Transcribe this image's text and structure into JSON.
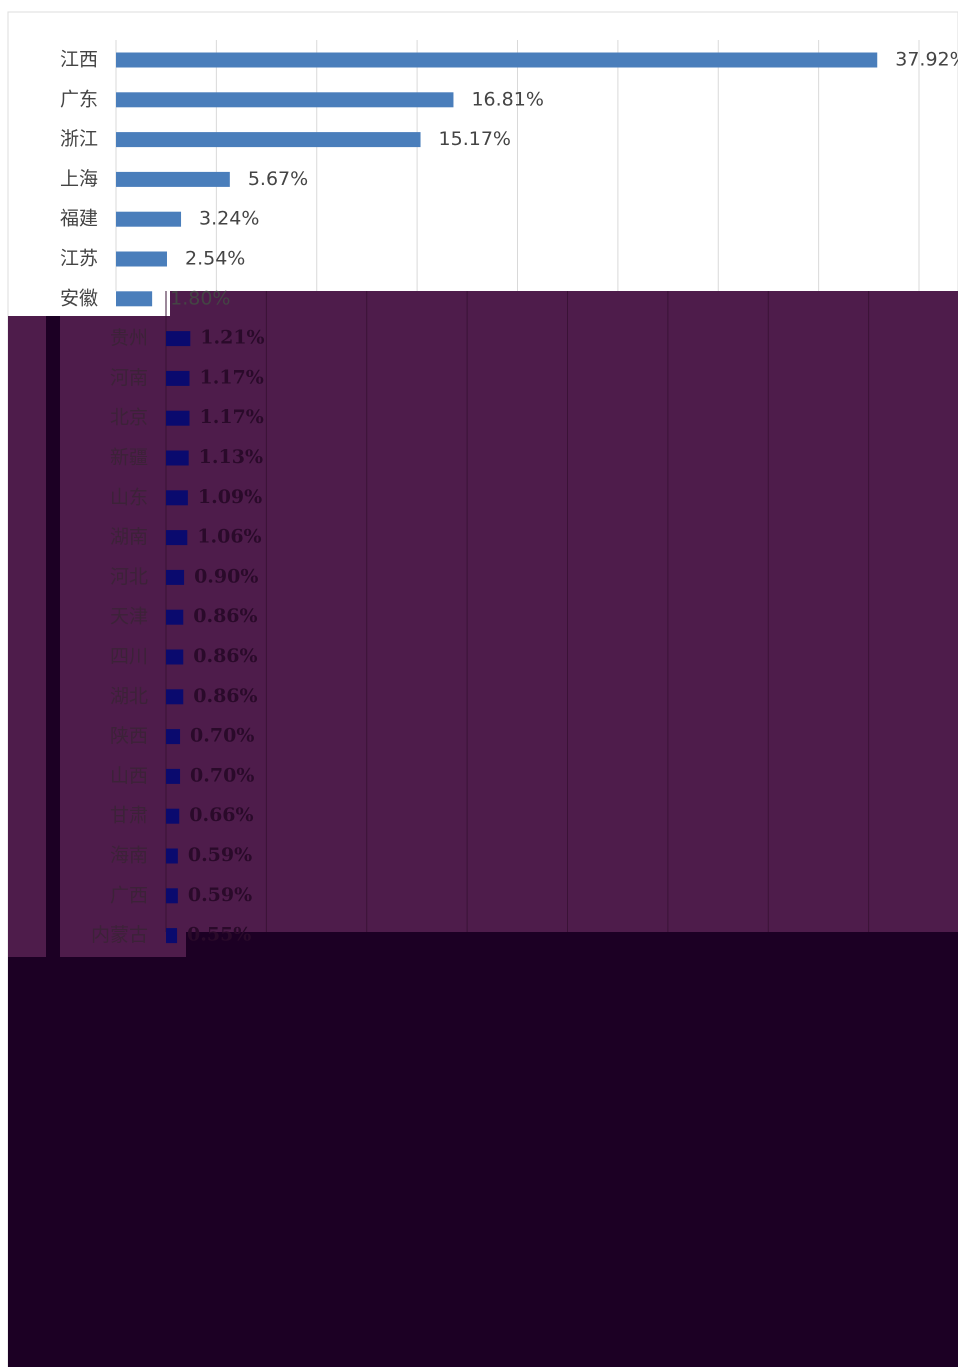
{
  "chart_data": {
    "type": "bar",
    "orientation": "horizontal",
    "categories": [
      "江西",
      "广东",
      "浙江",
      "上海",
      "福建",
      "江苏",
      "安徽",
      "贵州",
      "河南",
      "北京",
      "新疆",
      "山东",
      "湖南",
      "河北",
      "天津",
      "四川",
      "湖北",
      "陕西",
      "山西",
      "甘肃",
      "海南",
      "广西",
      "内蒙古"
    ],
    "values": [
      37.92,
      16.81,
      15.17,
      5.67,
      3.24,
      2.54,
      1.8,
      1.21,
      1.17,
      1.17,
      1.13,
      1.09,
      1.06,
      0.9,
      0.86,
      0.86,
      0.86,
      0.7,
      0.7,
      0.66,
      0.59,
      0.59,
      0.55
    ],
    "value_labels": [
      "37.92%",
      "16.81%",
      "15.17%",
      "5.67%",
      "3.24%",
      "2.54%",
      "1.80%",
      "1.21%",
      "1.17%",
      "1.17%",
      "1.13%",
      "1.09%",
      "1.06%",
      "0.90%",
      "0.86%",
      "0.86%",
      "0.86%",
      "0.70%",
      "0.70%",
      "0.66%",
      "0.59%",
      "0.59%",
      "0.55%"
    ],
    "color": "#4a7ebb",
    "xlim": [
      0,
      40
    ],
    "xticks": [
      0,
      5,
      10,
      15,
      20,
      25,
      30,
      35,
      40
    ],
    "grid": true
  }
}
